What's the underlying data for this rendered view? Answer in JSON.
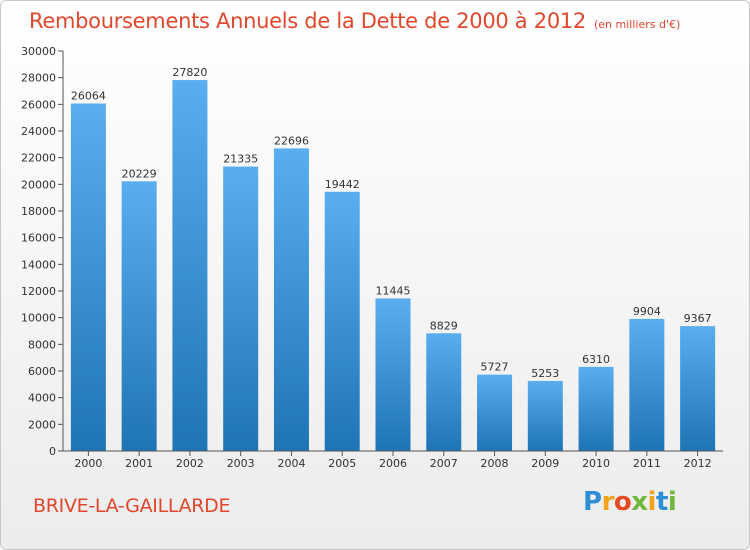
{
  "title": "Remboursements Annuels de la Dette de 2000 à 2012",
  "subtitle": "(en milliers d'€)",
  "city": "BRIVE-LA-GAILLARDE",
  "logo": {
    "letters": [
      "P",
      "r",
      "o",
      "x",
      "i",
      "t",
      "i"
    ]
  },
  "colors": {
    "title": "#e0472c",
    "bar_top": "#5aaef0",
    "bar_bottom": "#1f74b4",
    "logo": [
      "#2f8fd6",
      "#f2a31b",
      "#e84a24",
      "#6fb83b",
      "#f2a31b",
      "#2f8fd6",
      "#6fb83b"
    ]
  },
  "chart_data": {
    "type": "bar",
    "categories": [
      "2000",
      "2001",
      "2002",
      "2003",
      "2004",
      "2005",
      "2006",
      "2007",
      "2008",
      "2009",
      "2010",
      "2011",
      "2012"
    ],
    "values": [
      26064,
      20229,
      27820,
      21335,
      22696,
      19442,
      11445,
      8829,
      5727,
      5253,
      6310,
      9904,
      9367
    ],
    "ylim": [
      0,
      30000
    ],
    "yticks": [
      0,
      2000,
      4000,
      6000,
      8000,
      10000,
      12000,
      14000,
      16000,
      18000,
      20000,
      22000,
      24000,
      26000,
      28000,
      30000
    ],
    "grid": false,
    "data_labels": true
  }
}
